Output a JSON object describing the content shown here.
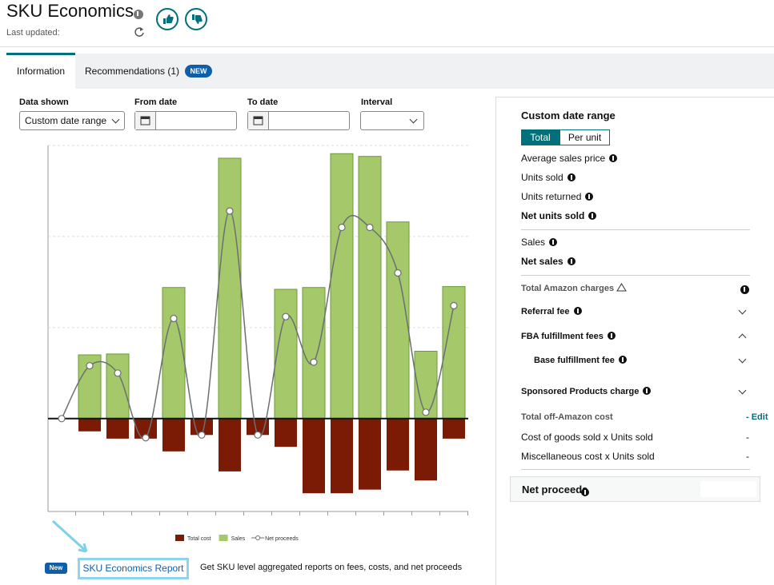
{
  "header": {
    "title": "SKU Economics",
    "last_updated": "Last updated:"
  },
  "tabs": {
    "items": [
      "Information",
      "Recommendations (1)"
    ],
    "badge": "NEW"
  },
  "filters": {
    "labels": [
      "Data shown",
      "From date",
      "To date",
      "Interval"
    ],
    "data_shown_value": "Custom date range"
  },
  "chart_data": {
    "type": "combo",
    "categories": [
      null,
      null,
      null,
      null,
      null,
      null,
      null,
      null,
      null,
      null,
      null,
      null,
      null,
      null,
      null
    ],
    "series": [
      {
        "name": "Total cost",
        "type": "bar",
        "color": "#7b1a05",
        "values": [
          0,
          -14,
          -22,
          -22,
          -36,
          -18,
          -58,
          -18,
          -31,
          -82,
          -82,
          -78,
          -57,
          -68,
          -22
        ]
      },
      {
        "name": "Sales",
        "type": "bar",
        "color": "#a5c96a",
        "values": [
          0,
          70,
          71,
          0,
          144,
          0,
          286,
          0,
          142,
          144,
          291,
          288,
          216,
          74,
          145
        ]
      },
      {
        "name": "Net proceeds",
        "type": "line",
        "color": "#6b6f73",
        "values": [
          0,
          58,
          50,
          -21,
          110,
          -18,
          228,
          -18,
          112,
          62,
          210,
          210,
          160,
          7,
          124
        ]
      }
    ],
    "ylim": [
      -102,
      300
    ],
    "yticks": [
      0,
      100,
      200,
      300
    ],
    "grid": true
  },
  "banner": {
    "badge": "New",
    "link": "SKU Economics Report",
    "text": "Get SKU level aggregated reports on fees, costs, and net proceeds"
  },
  "panel": {
    "title": "Custom date range",
    "toggle": [
      "Total",
      "Per unit"
    ],
    "rows": [
      "Average sales price",
      "Units sold",
      "Units returned",
      "Net units sold",
      "Sales",
      "Net sales",
      "Total Amazon charges",
      "Referral fee",
      "FBA fulfillment fees",
      "Base fulfillment fee",
      "Sponsored Products charge",
      "Total off-Amazon cost",
      "Cost of goods sold x Units sold",
      "Miscellaneous cost x Units sold"
    ],
    "off_amazon_action": "- Edit",
    "cogs_value": "-",
    "misc_value": "-",
    "net_proceeds": "Net proceeds"
  }
}
